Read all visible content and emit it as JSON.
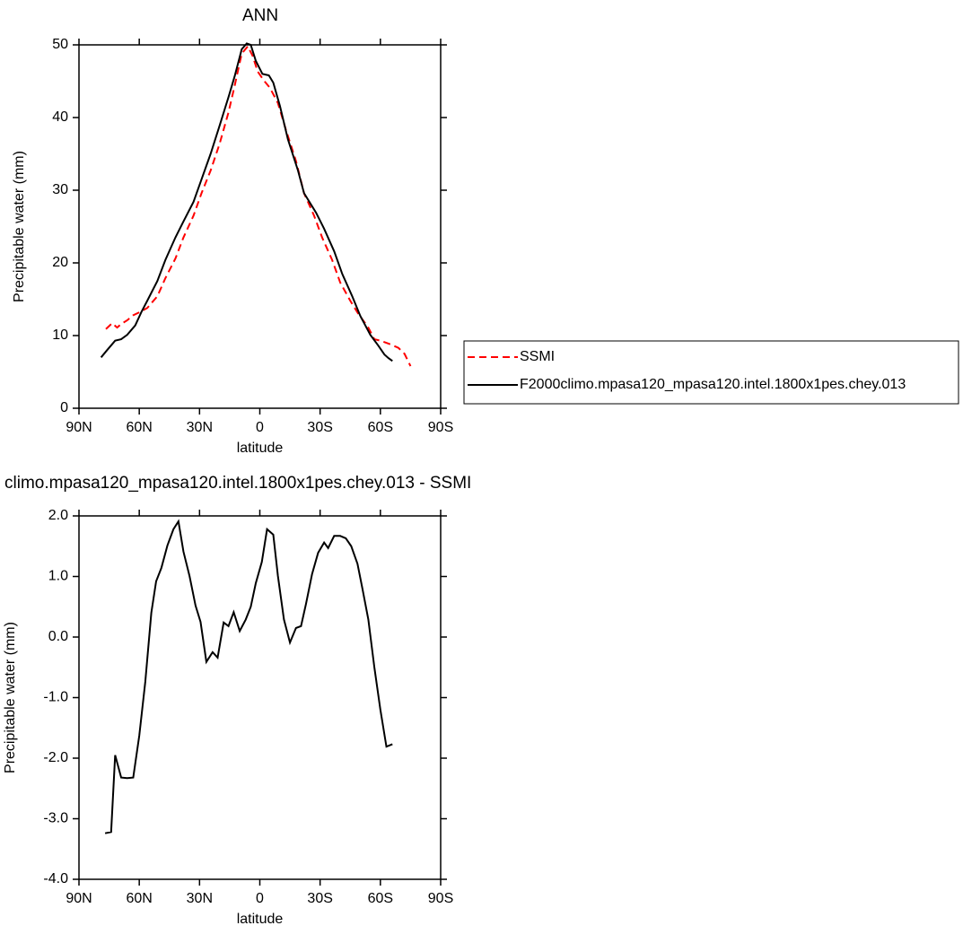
{
  "chart_data": [
    {
      "type": "line",
      "title": "ANN",
      "xlabel": "latitude",
      "ylabel": "Precipitable water (mm)",
      "xlim": [
        90,
        -90
      ],
      "xticks": [
        {
          "value": 90,
          "label": "90N"
        },
        {
          "value": 60,
          "label": "60N"
        },
        {
          "value": 30,
          "label": "30N"
        },
        0,
        {
          "value": -30,
          "label": "30S"
        },
        {
          "value": -60,
          "label": "60S"
        },
        {
          "value": -90,
          "label": "90S"
        }
      ],
      "ylim": [
        0,
        50
      ],
      "yticks": [
        0,
        10,
        20,
        30,
        40,
        50
      ],
      "legend": "right",
      "series": [
        {
          "name": "SSMI",
          "color": "#ff0000",
          "line_style": "dashed",
          "x": [
            76.6,
            73.5,
            71,
            69,
            66,
            63,
            60,
            56,
            51,
            47,
            42,
            38,
            33,
            29,
            24.5,
            20,
            15.6,
            12.5,
            9,
            6,
            3.6,
            1,
            -2,
            -5,
            -9,
            -13,
            -18,
            -22,
            -27,
            -31,
            -36,
            -40,
            -45,
            -49,
            -54,
            -57,
            -60,
            -65,
            -69,
            -72,
            -75
          ],
          "values": [
            10.9,
            11.7,
            11.1,
            11.6,
            12.1,
            12.8,
            13.2,
            13.8,
            15.4,
            17.9,
            20.6,
            23.5,
            26.5,
            29.6,
            32.7,
            36.4,
            40.7,
            44.4,
            48.8,
            49.8,
            48.5,
            46.3,
            45.1,
            44.1,
            42,
            38.3,
            34,
            29.6,
            26.5,
            23.5,
            20.4,
            17.3,
            14.8,
            13,
            11.1,
            9.5,
            9.3,
            8.8,
            8.3,
            7.5,
            5.8
          ]
        },
        {
          "name": "F2000climo.mpasa120_mpasa120.intel.1800x1pes.chey.013",
          "color": "#000000",
          "line_style": "solid",
          "x": [
            79,
            76,
            72,
            69,
            66,
            62,
            59,
            56,
            51,
            47,
            42,
            38,
            33,
            29,
            24.5,
            20,
            15.6,
            12.5,
            9,
            6.5,
            4.5,
            2,
            -1.3,
            -4.5,
            -6.7,
            -10,
            -14,
            -19,
            -22,
            -28,
            -32,
            -37,
            -41,
            -46,
            -50,
            -55,
            -59,
            -62,
            -64,
            -66
          ],
          "values": [
            7.0,
            8,
            9.3,
            9.5,
            10.1,
            11.4,
            13.2,
            14.8,
            17.5,
            20.4,
            23.5,
            25.7,
            28.4,
            31.5,
            35,
            38.9,
            42.8,
            45.7,
            49.4,
            50.2,
            50,
            47.8,
            46,
            45.8,
            44.8,
            41.6,
            37,
            32.7,
            29.6,
            26.9,
            24.7,
            21.6,
            18.5,
            15.4,
            12.7,
            10.1,
            8.6,
            7.4,
            6.9,
            6.5
          ]
        }
      ]
    },
    {
      "type": "line",
      "title": "climo.mpasa120_mpasa120.intel.1800x1pes.chey.013 - SSMI",
      "xlabel": "latitude",
      "ylabel": "Precipitable water (mm)",
      "xlim": [
        90,
        -90
      ],
      "xticks": [
        {
          "value": 90,
          "label": "90N"
        },
        {
          "value": 60,
          "label": "60N"
        },
        {
          "value": 30,
          "label": "30N"
        },
        0,
        {
          "value": -30,
          "label": "30S"
        },
        {
          "value": -60,
          "label": "60S"
        },
        {
          "value": -90,
          "label": "90S"
        }
      ],
      "ylim": [
        -4,
        2
      ],
      "yticks": [
        {
          "value": -4,
          "label": "-4.0"
        },
        {
          "value": -3,
          "label": "-3.0"
        },
        {
          "value": -2,
          "label": "-2.0"
        },
        {
          "value": -1,
          "label": "-1.0"
        },
        {
          "value": 0,
          "label": "0.0"
        },
        {
          "value": 1,
          "label": "1.0"
        },
        {
          "value": 2,
          "label": "2.0"
        }
      ],
      "series": [
        {
          "color": "#000000",
          "line_style": "solid",
          "x": [
            77,
            74,
            72,
            69,
            66,
            63,
            60,
            57,
            54,
            51.6,
            49,
            46,
            43,
            40.5,
            38,
            35,
            32,
            29.5,
            26.6,
            23.5,
            21,
            18,
            15.6,
            13,
            10,
            7,
            4.5,
            2,
            -1,
            -3.6,
            -6.7,
            -9,
            -12,
            -15,
            -18,
            -20.5,
            -23,
            -26,
            -29,
            -32,
            -34,
            -37,
            -40,
            -42.8,
            -45.5,
            -48.6,
            -51,
            -54,
            -57,
            -60,
            -63,
            -66
          ],
          "values": [
            -3.24,
            -3.22,
            -1.95,
            -2.32,
            -2.33,
            -2.32,
            -1.63,
            -0.74,
            0.4,
            0.92,
            1.14,
            1.51,
            1.78,
            1.91,
            1.41,
            1.01,
            0.52,
            0.25,
            -0.41,
            -0.25,
            -0.34,
            0.24,
            0.18,
            0.41,
            0.1,
            0.29,
            0.5,
            0.89,
            1.24,
            1.78,
            1.69,
            1.01,
            0.29,
            -0.09,
            0.15,
            0.18,
            0.55,
            1.04,
            1.39,
            1.56,
            1.47,
            1.67,
            1.67,
            1.63,
            1.5,
            1.21,
            0.81,
            0.29,
            -0.5,
            -1.2,
            -1.81,
            -1.77
          ]
        }
      ]
    }
  ]
}
